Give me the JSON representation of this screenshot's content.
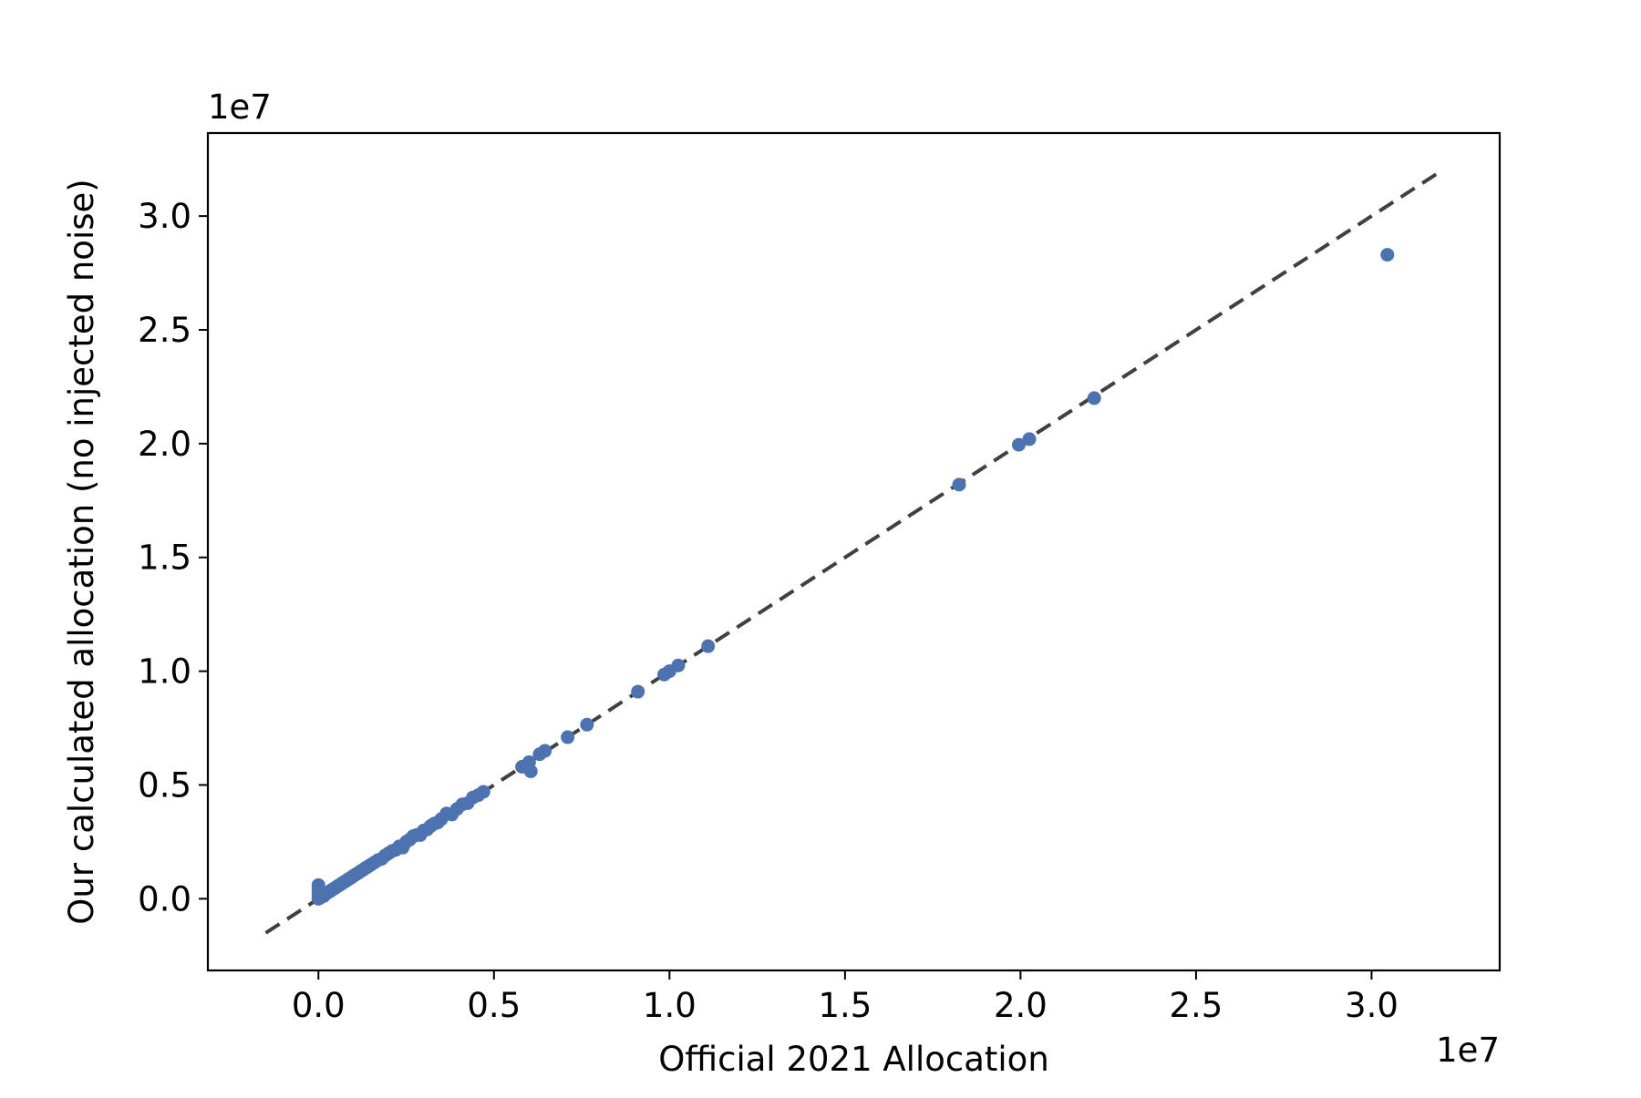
{
  "chart_data": {
    "type": "scatter",
    "title": "",
    "xlabel": "Official 2021 Allocation",
    "ylabel": "Our calculated allocation (no injected noise)",
    "x_offset_label": "1e7",
    "y_offset_label": "1e7",
    "xlim": [
      -3150000,
      33650000
    ],
    "ylim": [
      -3150000,
      33650000
    ],
    "xticks": [
      0.0,
      0.5,
      1.0,
      1.5,
      2.0,
      2.5,
      3.0
    ],
    "yticks": [
      0.0,
      0.5,
      1.0,
      1.5,
      2.0,
      2.5,
      3.0
    ],
    "xtick_labels": [
      "0.0",
      "0.5",
      "1.0",
      "1.5",
      "2.0",
      "2.5",
      "3.0"
    ],
    "ytick_labels": [
      "0.0",
      "0.5",
      "1.0",
      "1.5",
      "2.0",
      "2.5",
      "3.0"
    ],
    "tick_multiplier": 10000000,
    "grid": false,
    "reference_line": {
      "style": "dashed",
      "color": "#404040",
      "x": [
        -1500000,
        32000000
      ],
      "y": [
        -1500000,
        32000000
      ]
    },
    "series": [
      {
        "color": "#4c72b0",
        "points": [
          [
            0,
            0
          ],
          [
            0,
            150000
          ],
          [
            0,
            300000
          ],
          [
            0,
            450000
          ],
          [
            0,
            600000
          ],
          [
            50000,
            50000
          ],
          [
            100000,
            100000
          ],
          [
            150000,
            120000
          ],
          [
            200000,
            200000
          ],
          [
            250000,
            260000
          ],
          [
            300000,
            300000
          ],
          [
            350000,
            350000
          ],
          [
            400000,
            410000
          ],
          [
            450000,
            450000
          ],
          [
            500000,
            500000
          ],
          [
            550000,
            560000
          ],
          [
            600000,
            600000
          ],
          [
            650000,
            650000
          ],
          [
            700000,
            710000
          ],
          [
            750000,
            750000
          ],
          [
            800000,
            800000
          ],
          [
            850000,
            860000
          ],
          [
            900000,
            900000
          ],
          [
            950000,
            950000
          ],
          [
            1000000,
            1000000
          ],
          [
            1050000,
            1060000
          ],
          [
            1100000,
            1100000
          ],
          [
            1150000,
            1150000
          ],
          [
            1200000,
            1210000
          ],
          [
            1250000,
            1250000
          ],
          [
            1300000,
            1300000
          ],
          [
            1350000,
            1360000
          ],
          [
            1400000,
            1400000
          ],
          [
            1450000,
            1450000
          ],
          [
            1500000,
            1500000
          ],
          [
            1600000,
            1600000
          ],
          [
            1700000,
            1700000
          ],
          [
            1800000,
            1750000
          ],
          [
            1900000,
            1900000
          ],
          [
            2000000,
            2000000
          ],
          [
            2100000,
            2100000
          ],
          [
            2200000,
            2150000
          ],
          [
            2300000,
            2300000
          ],
          [
            2400000,
            2250000
          ],
          [
            2500000,
            2500000
          ],
          [
            2600000,
            2600000
          ],
          [
            2700000,
            2750000
          ],
          [
            2800000,
            2800000
          ],
          [
            2900000,
            2800000
          ],
          [
            3000000,
            3000000
          ],
          [
            3100000,
            3050000
          ],
          [
            3200000,
            3200000
          ],
          [
            3300000,
            3300000
          ],
          [
            3400000,
            3350000
          ],
          [
            3500000,
            3500000
          ],
          [
            3650000,
            3750000
          ],
          [
            3800000,
            3700000
          ],
          [
            3950000,
            3950000
          ],
          [
            4100000,
            4150000
          ],
          [
            4250000,
            4200000
          ],
          [
            4400000,
            4450000
          ],
          [
            4550000,
            4550000
          ],
          [
            4700000,
            4700000
          ],
          [
            5800000,
            5800000
          ],
          [
            5950000,
            5900000
          ],
          [
            6000000,
            6000000
          ],
          [
            6050000,
            5600000
          ],
          [
            6300000,
            6350000
          ],
          [
            6450000,
            6500000
          ],
          [
            7100000,
            7100000
          ],
          [
            7650000,
            7650000
          ],
          [
            9100000,
            9100000
          ],
          [
            9850000,
            9850000
          ],
          [
            10000000,
            10000000
          ],
          [
            10250000,
            10250000
          ],
          [
            11100000,
            11100000
          ],
          [
            18250000,
            18200000
          ],
          [
            19950000,
            19950000
          ],
          [
            20250000,
            20200000
          ],
          [
            22100000,
            22000000
          ],
          [
            30450000,
            28300000
          ]
        ]
      }
    ]
  }
}
